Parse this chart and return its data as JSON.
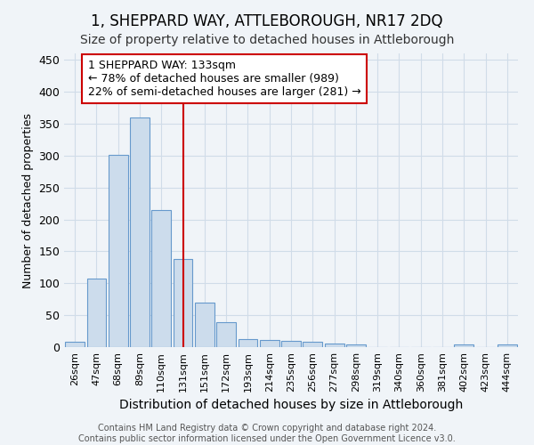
{
  "title": "1, SHEPPARD WAY, ATTLEBOROUGH, NR17 2DQ",
  "subtitle": "Size of property relative to detached houses in Attleborough",
  "xlabel": "Distribution of detached houses by size in Attleborough",
  "ylabel": "Number of detached properties",
  "footnote": "Contains HM Land Registry data © Crown copyright and database right 2024.\nContains public sector information licensed under the Open Government Licence v3.0.",
  "bin_labels": [
    "26sqm",
    "47sqm",
    "68sqm",
    "89sqm",
    "110sqm",
    "131sqm",
    "151sqm",
    "172sqm",
    "193sqm",
    "214sqm",
    "235sqm",
    "256sqm",
    "277sqm",
    "298sqm",
    "319sqm",
    "340sqm",
    "360sqm",
    "381sqm",
    "402sqm",
    "423sqm",
    "444sqm"
  ],
  "bar_heights": [
    9,
    108,
    301,
    359,
    214,
    138,
    70,
    39,
    13,
    11,
    10,
    8,
    5,
    4,
    0,
    0,
    0,
    0,
    4,
    0,
    4
  ],
  "bar_color": "#ccdcec",
  "bar_edge_color": "#6699cc",
  "property_line_x": 5.0,
  "property_line_color": "#cc0000",
  "annotation_text": "1 SHEPPARD WAY: 133sqm\n← 78% of detached houses are smaller (989)\n22% of semi-detached houses are larger (281) →",
  "annotation_box_color": "#cc0000",
  "ylim": [
    0,
    460
  ],
  "yticks": [
    0,
    50,
    100,
    150,
    200,
    250,
    300,
    350,
    400,
    450
  ],
  "background_color": "#f0f4f8",
  "grid_color": "#d0dce8",
  "title_fontsize": 12,
  "subtitle_fontsize": 10,
  "xlabel_fontsize": 10,
  "ylabel_fontsize": 9,
  "footnote_fontsize": 7
}
